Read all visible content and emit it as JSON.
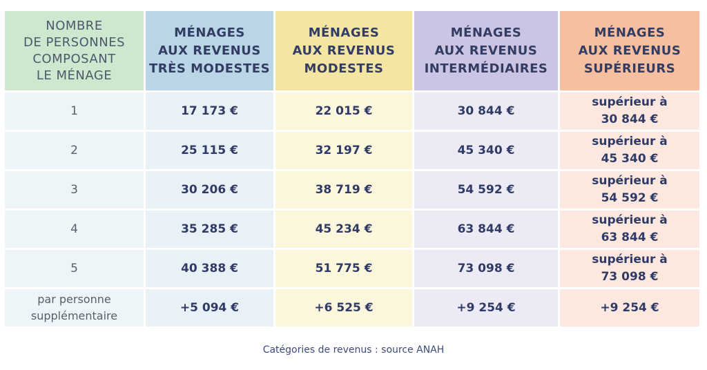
{
  "table": {
    "headers": [
      "NOMBRE\nDE PERSONNES\nCOMPOSANT\nLE MÉNAGE",
      "MÉNAGES\nAUX REVENUS\nTRÈS MODESTES",
      "MÉNAGES\nAUX REVENUS\nMODESTES",
      "MÉNAGES\nAUX REVENUS\nINTERMÉDIAIRES",
      "MÉNAGES\nAUX REVENUS\nSUPÉRIEURS"
    ],
    "rows": [
      [
        "1",
        "17 173 €",
        "22 015 €",
        "30 844 €",
        "supérieur à\n30 844 €"
      ],
      [
        "2",
        "25 115 €",
        "32 197 €",
        "45 340 €",
        "supérieur à\n45 340 €"
      ],
      [
        "3",
        "30 206 €",
        "38 719 €",
        "54 592 €",
        "supérieur à\n54 592 €"
      ],
      [
        "4",
        "35 285 €",
        "45 234 €",
        "63 844 €",
        "supérieur à\n63 844 €"
      ],
      [
        "5",
        "40 388 €",
        "51 775 €",
        "73 098 €",
        "supérieur à\n73 098 €"
      ],
      [
        "par personne\nsupplémentaire",
        "+5 094 €",
        "+6 525 €",
        "+9 254 €",
        "+9 254 €"
      ]
    ]
  },
  "caption": "Catégories de revenus : source ANAH",
  "colors": {
    "header_persons": "#cfe6cf",
    "header_tres_modestes": "#b9d5e6",
    "header_modestes": "#f4e6a2",
    "header_intermediaires": "#cbc5e3",
    "header_superieurs": "#f6bf9f",
    "text": "#2f3b66"
  }
}
